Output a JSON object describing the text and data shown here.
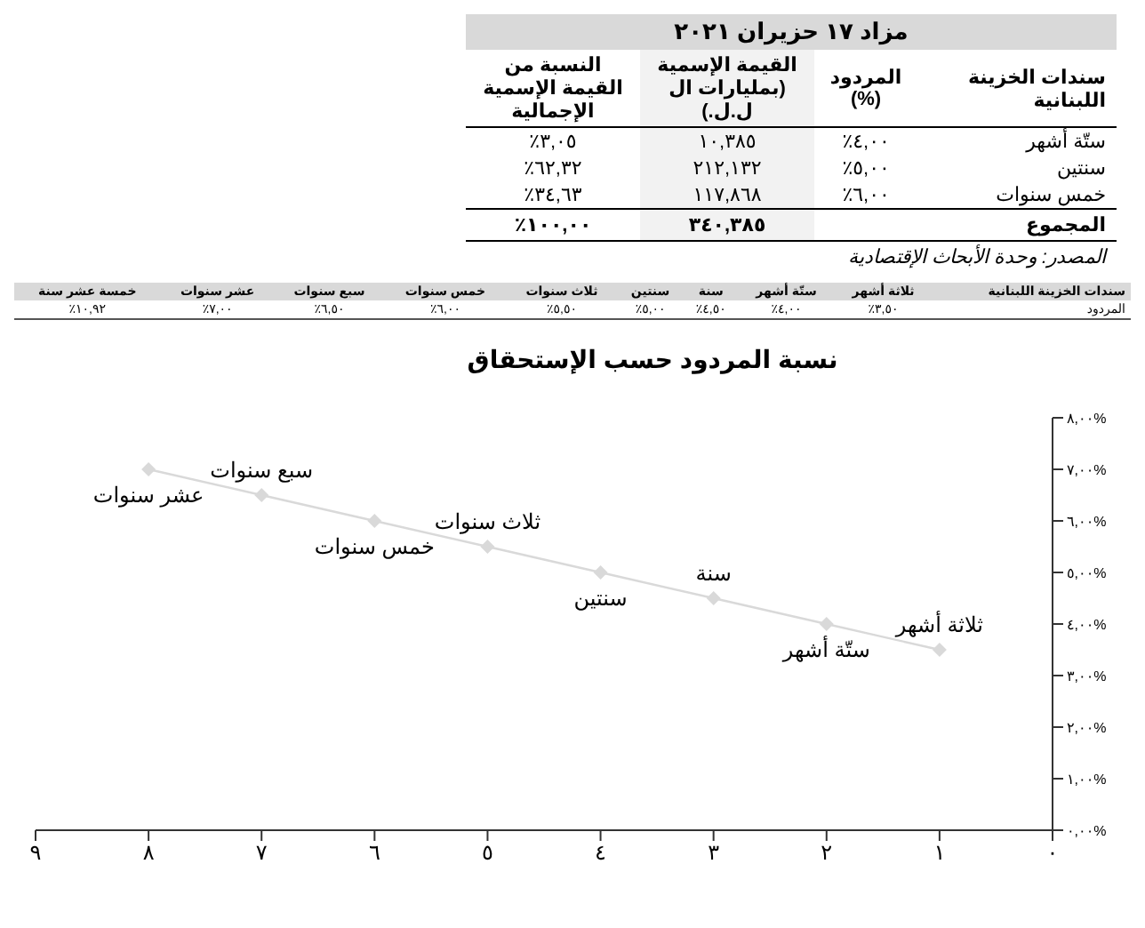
{
  "chart_data": {
    "type": "line",
    "title": "نسبة المردود حسب الإستحقاق",
    "x": [
      1,
      2,
      3,
      4,
      5,
      6,
      7,
      8
    ],
    "series": [
      {
        "color": "#d9d9d9",
        "values": [
          3.5,
          4,
          4.5,
          5,
          5.5,
          6,
          6.5,
          7
        ]
      }
    ],
    "marker": "diamond",
    "grid": false,
    "legend": false,
    "xlim": [
      9,
      0
    ],
    "xticks": [
      {
        "value": 0,
        "label": "٠"
      },
      {
        "value": 1,
        "label": "١"
      },
      {
        "value": 2,
        "label": "٢"
      },
      {
        "value": 3,
        "label": "٣"
      },
      {
        "value": 4,
        "label": "٤"
      },
      {
        "value": 5,
        "label": "٥"
      },
      {
        "value": 6,
        "label": "٦"
      },
      {
        "value": 7,
        "label": "٧"
      },
      {
        "value": 8,
        "label": "٨"
      },
      {
        "value": 9,
        "label": "٩"
      }
    ],
    "ylim": [
      0,
      8
    ],
    "yticks": [
      {
        "value": 0,
        "label": "٠,٠٠%"
      },
      {
        "value": 1,
        "label": "١,٠٠%"
      },
      {
        "value": 2,
        "label": "٢,٠٠%"
      },
      {
        "value": 3,
        "label": "٣,٠٠%"
      },
      {
        "value": 4,
        "label": "٤,٠٠%"
      },
      {
        "value": 5,
        "label": "٥,٠٠%"
      },
      {
        "value": 6,
        "label": "٦,٠٠%"
      },
      {
        "value": 7,
        "label": "٧,٠٠%"
      },
      {
        "value": 8,
        "label": "٨,٠٠%"
      }
    ],
    "annotations": [
      "مزاد ١٧ حزيران ٢٠٢١",
      "سندات الخزينة اللبنانية",
      "المردود (%)",
      "القيمة الإسمية (بمليارات ال ل.ل.)",
      "النسبة من القيمة الإسمية الإجمالية",
      "ستّة أشهر",
      "٤,٠٠٪",
      "١٠,٣٨٥",
      "٣,٠٥٪",
      "سنتين",
      "٥,٠٠٪",
      "٢١٢,١٣٢",
      "٦٢,٣٢٪",
      "خمس سنوات",
      "٦,٠٠٪",
      "١١٧,٨٦٨",
      "٣٤,٦٣٪",
      "المجموع",
      "٣٤٠,٣٨٥",
      "١٠٠,٠٠٪",
      "المصدر: وحدة الأبحاث الإقتصادية",
      "سندات الخزينة اللبنانية",
      "ثلاثة أشهر",
      "ستّة أشهر",
      "سنة",
      "سنتين",
      "ثلاث سنوات",
      "خمس سنوات",
      "سبع سنوات",
      "عشر سنوات",
      "خمسة عشر سنة",
      "المردود",
      "٣,٥٠٪",
      "٤,٠٠٪",
      "٤,٥٠٪",
      "٥,٠٠٪",
      "٥,٥٠٪",
      "٦,٠٠٪",
      "٦,٥٠٪",
      "٧,٠٠٪",
      "١٠,٩٢٪",
      {
        "text": "ثلاثة أشهر",
        "x": 1,
        "y": 3.5
      },
      {
        "text": "ستّة أشهر",
        "x": 2,
        "y": 4
      },
      {
        "text": "سنة",
        "x": 3,
        "y": 4.5
      },
      {
        "text": "سنتين",
        "x": 4,
        "y": 5
      },
      {
        "text": "ثلاث سنوات",
        "x": 5,
        "y": 5.5
      },
      {
        "text": "خمس سنوات",
        "x": 6,
        "y": 6
      },
      {
        "text": "سبع سنوات",
        "x": 7,
        "y": 6.5
      },
      {
        "text": "عشر سنوات",
        "x": 8,
        "y": 7
      }
    ]
  }
}
